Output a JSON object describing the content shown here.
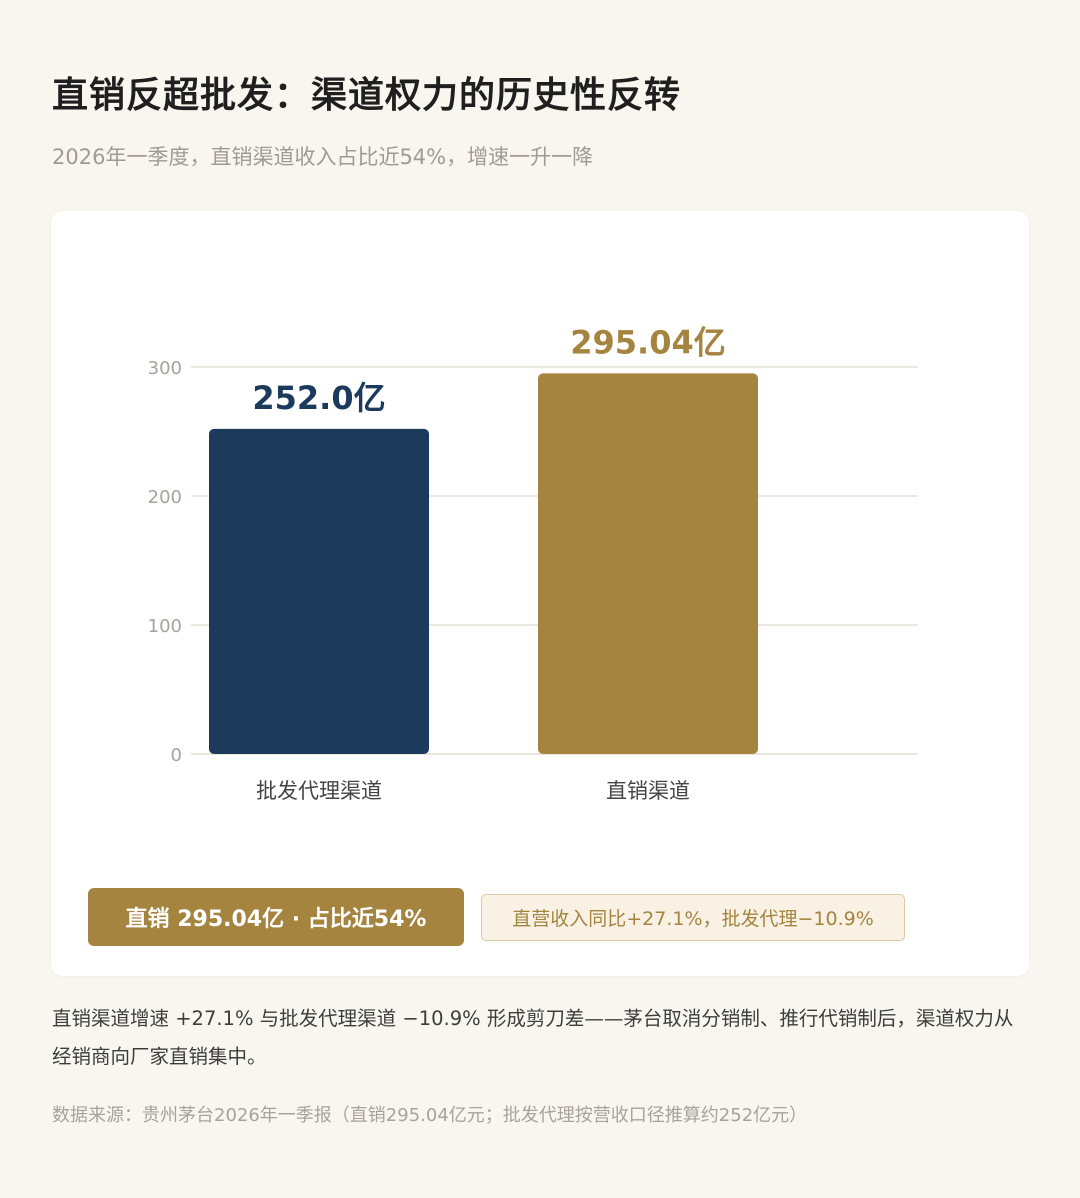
{
  "header": {
    "title": "直销反超批发：渠道权力的历史性反转",
    "subtitle": "2026年一季度，直销渠道收入占比近54%，增速一升一降"
  },
  "chart_data": {
    "type": "bar",
    "categories": [
      "批发代理渠道",
      "直销渠道"
    ],
    "values": [
      252.0,
      295.04
    ],
    "value_labels": [
      "252.0亿",
      "295.04亿"
    ],
    "colors": [
      "#1b3a5c",
      "#a5843f"
    ],
    "ylim": [
      0,
      300
    ],
    "yticks": [
      0,
      100,
      200,
      300
    ],
    "grid": true,
    "legend": "none",
    "xlabel": "",
    "ylabel": ""
  },
  "callouts": {
    "primary": "直销 295.04亿 · 占比近54%",
    "secondary": "直营收入同比+27.1%，批发代理−10.9%"
  },
  "note": "直销渠道增速 +27.1% 与批发代理渠道 −10.9% 形成剪刀差——茅台取消分销制、推行代销制后，渠道权力从经销商向厂家直销集中。",
  "source": "数据来源：贵州茅台2026年一季报（直销295.04亿元；批发代理按营收口径推算约252亿元）"
}
